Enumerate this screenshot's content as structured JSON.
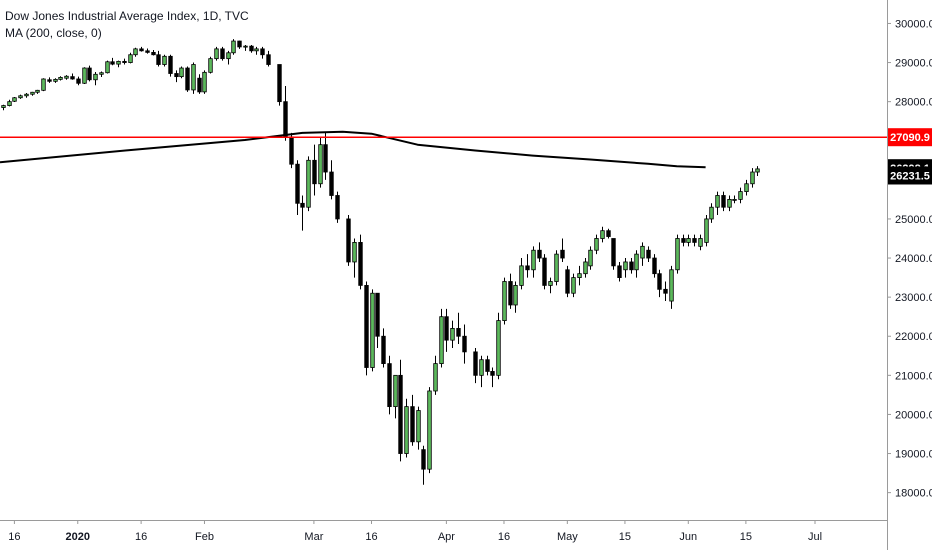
{
  "legend": {
    "title": "Dow Jones Industrial Average Index, 1D, TVC",
    "indicator": "MA (200, close, 0)"
  },
  "colors": {
    "up": "#5cb85c",
    "down": "#000000",
    "ma": "#000000",
    "hline": "#ff0000",
    "axis": "#131722",
    "axis_line": "#9a9a9a"
  },
  "chart_data": {
    "type": "candlestick",
    "y_axis": {
      "ticks": [
        "18000.0",
        "19000.0",
        "20000.0",
        "21000.0",
        "22000.0",
        "23000.0",
        "24000.0",
        "25000.0",
        "26000.0",
        "27000.0",
        "28000.0",
        "29000.0",
        "30000.0"
      ],
      "ylim": [
        17300,
        30600
      ]
    },
    "x_axis": {
      "ticks": [
        {
          "label": "16",
          "x": 0
        },
        {
          "label": "2020",
          "x": 11
        },
        {
          "label": "16",
          "x": 22
        },
        {
          "label": "Feb",
          "x": 33
        },
        {
          "label": "Mar",
          "x": 52
        },
        {
          "label": "16",
          "x": 62
        },
        {
          "label": "Apr",
          "x": 75
        },
        {
          "label": "16",
          "x": 85
        },
        {
          "label": "May",
          "x": 96
        },
        {
          "label": "15",
          "x": 106
        },
        {
          "label": "Jun",
          "x": 117
        },
        {
          "label": "15",
          "x": 127
        },
        {
          "label": "Jul",
          "x": 139
        }
      ],
      "xlim": [
        -2.5,
        151.5
      ]
    },
    "horizontal_line": {
      "value": 27090.9,
      "label": "27090.9"
    },
    "price_labels": [
      {
        "value": 26298.1,
        "label": "26298.1"
      },
      {
        "value": 26231.5,
        "label": "26231.5"
      }
    ],
    "ma200": [
      [
        -2.5,
        26450
      ],
      [
        20,
        26760
      ],
      [
        40,
        27020
      ],
      [
        50,
        27200
      ],
      [
        57,
        27230
      ],
      [
        62,
        27180
      ],
      [
        70,
        26900
      ],
      [
        80,
        26750
      ],
      [
        90,
        26620
      ],
      [
        100,
        26520
      ],
      [
        110,
        26410
      ],
      [
        115,
        26350
      ],
      [
        120,
        26320
      ]
    ],
    "candles": [
      [
        -2,
        27850,
        27920,
        27780,
        27900
      ],
      [
        -1,
        27900,
        28050,
        27880,
        28000
      ],
      [
        0,
        28010,
        28120,
        27990,
        28100
      ],
      [
        1,
        28100,
        28180,
        28070,
        28150
      ],
      [
        2,
        28150,
        28220,
        28100,
        28190
      ],
      [
        3,
        28190,
        28250,
        28150,
        28240
      ],
      [
        4,
        28240,
        28300,
        28200,
        28290
      ],
      [
        5,
        28290,
        28600,
        28270,
        28580
      ],
      [
        6,
        28560,
        28620,
        28480,
        28520
      ],
      [
        7,
        28520,
        28600,
        28480,
        28570
      ],
      [
        8,
        28570,
        28650,
        28540,
        28620
      ],
      [
        9,
        28600,
        28680,
        28560,
        28650
      ],
      [
        10,
        28640,
        28720,
        28560,
        28580
      ],
      [
        11,
        28580,
        28640,
        28420,
        28470
      ],
      [
        12,
        28470,
        28880,
        28450,
        28860
      ],
      [
        13,
        28860,
        28920,
        28520,
        28560
      ],
      [
        14,
        28560,
        28760,
        28420,
        28700
      ],
      [
        15,
        28700,
        28770,
        28630,
        28740
      ],
      [
        16,
        28740,
        29050,
        28720,
        29020
      ],
      [
        17,
        29020,
        29120,
        28930,
        28960
      ],
      [
        18,
        28960,
        29050,
        28880,
        29030
      ],
      [
        19,
        29030,
        29100,
        28950,
        29000
      ],
      [
        20,
        29000,
        29250,
        28980,
        29200
      ],
      [
        21,
        29200,
        29380,
        29150,
        29350
      ],
      [
        22,
        29350,
        29400,
        29280,
        29300
      ],
      [
        23,
        29300,
        29360,
        29230,
        29260
      ],
      [
        24,
        29260,
        29320,
        29180,
        29200
      ],
      [
        25,
        29200,
        29300,
        28900,
        28950
      ],
      [
        26,
        28950,
        29200,
        28900,
        29160
      ],
      [
        27,
        29160,
        29200,
        28640,
        28720
      ],
      [
        28,
        28720,
        28800,
        28500,
        28640
      ],
      [
        29,
        28640,
        28900,
        28600,
        28860
      ],
      [
        30,
        28860,
        28900,
        28250,
        28300
      ],
      [
        31,
        28300,
        29000,
        28200,
        28950
      ],
      [
        32,
        28600,
        28700,
        28200,
        28250
      ],
      [
        33,
        28250,
        28800,
        28200,
        28750
      ],
      [
        34,
        28750,
        29150,
        28720,
        29100
      ],
      [
        35,
        29100,
        29400,
        29050,
        29350
      ],
      [
        36,
        29350,
        29400,
        29050,
        29100
      ],
      [
        37,
        29100,
        29300,
        28950,
        29250
      ],
      [
        38,
        29250,
        29600,
        29200,
        29550
      ],
      [
        39,
        29550,
        29560,
        29350,
        29400
      ],
      [
        40,
        29400,
        29450,
        29300,
        29420
      ],
      [
        41,
        29420,
        29450,
        29250,
        29300
      ],
      [
        42,
        29300,
        29400,
        29200,
        29350
      ],
      [
        43,
        29350,
        29400,
        29100,
        29200
      ],
      [
        44,
        29200,
        29300,
        28900,
        28950
      ],
      [
        46,
        28950,
        28950,
        27900,
        28000
      ],
      [
        47,
        28000,
        28400,
        27000,
        27100
      ],
      [
        48,
        27100,
        27200,
        26300,
        26400
      ],
      [
        49,
        26400,
        26500,
        25100,
        25400
      ],
      [
        50,
        25400,
        25600,
        24700,
        25300
      ],
      [
        51,
        25300,
        26600,
        25200,
        26500
      ],
      [
        52,
        26500,
        26900,
        25600,
        25900
      ],
      [
        53,
        25900,
        27100,
        25800,
        26900
      ],
      [
        54,
        26900,
        27200,
        26000,
        26200
      ],
      [
        55,
        26200,
        26500,
        25500,
        25600
      ],
      [
        56,
        25600,
        25700,
        24900,
        25000
      ],
      [
        58,
        25000,
        25100,
        23800,
        23900
      ],
      [
        59,
        23900,
        24500,
        23500,
        24400
      ],
      [
        60,
        24400,
        24600,
        23200,
        23300
      ],
      [
        61,
        23300,
        23400,
        21000,
        21200
      ],
      [
        62,
        21200,
        23200,
        21100,
        23100
      ],
      [
        63,
        23100,
        23100,
        21700,
        22000
      ],
      [
        64,
        22000,
        22200,
        21200,
        21300
      ],
      [
        65,
        21300,
        21500,
        20000,
        20200
      ],
      [
        66,
        20200,
        21000,
        19900,
        21000
      ],
      [
        67,
        21000,
        21400,
        18800,
        19000
      ],
      [
        68,
        19000,
        20400,
        18900,
        20200
      ],
      [
        69,
        20200,
        20500,
        19200,
        19300
      ],
      [
        70,
        19300,
        20200,
        19100,
        20100
      ],
      [
        71,
        19100,
        19200,
        18200,
        18600
      ],
      [
        72,
        18600,
        20700,
        18500,
        20600
      ],
      [
        73,
        20600,
        21500,
        20500,
        21300
      ],
      [
        74,
        21300,
        22700,
        21200,
        22500
      ],
      [
        75,
        22500,
        22700,
        21600,
        21900
      ],
      [
        76,
        21900,
        22400,
        21700,
        22200
      ],
      [
        77,
        22200,
        22600,
        21800,
        22000
      ],
      [
        78,
        22000,
        22300,
        21300,
        21600
      ],
      [
        80,
        21600,
        21700,
        20800,
        21000
      ],
      [
        81,
        21000,
        21500,
        20700,
        21400
      ],
      [
        82,
        21400,
        21500,
        21000,
        21100
      ],
      [
        83,
        21100,
        21200,
        20700,
        21000
      ],
      [
        84,
        21000,
        22600,
        20900,
        22400
      ],
      [
        85,
        22400,
        23500,
        22300,
        23400
      ],
      [
        86,
        23400,
        23600,
        22700,
        22800
      ],
      [
        87,
        22800,
        23400,
        22600,
        23300
      ],
      [
        88,
        23300,
        24000,
        23200,
        23800
      ],
      [
        89,
        23800,
        24100,
        23500,
        23700
      ],
      [
        90,
        23700,
        24300,
        23500,
        24200
      ],
      [
        91,
        24200,
        24400,
        23900,
        24000
      ],
      [
        92,
        24000,
        24100,
        23200,
        23300
      ],
      [
        93,
        23300,
        23500,
        23100,
        23400
      ],
      [
        94,
        23400,
        24200,
        23300,
        24100
      ],
      [
        95,
        24200,
        24500,
        23900,
        24000
      ],
      [
        96,
        23700,
        23800,
        23000,
        23100
      ],
      [
        97,
        23100,
        23600,
        23000,
        23500
      ],
      [
        98,
        23500,
        23800,
        23300,
        23600
      ],
      [
        99,
        23600,
        24000,
        23500,
        23900
      ],
      [
        100,
        23800,
        24300,
        23700,
        24200
      ],
      [
        101,
        24200,
        24600,
        24100,
        24500
      ],
      [
        102,
        24500,
        24800,
        24400,
        24700
      ],
      [
        103,
        24700,
        24750,
        24500,
        24550
      ],
      [
        104,
        24500,
        24500,
        23700,
        23800
      ],
      [
        105,
        23800,
        23900,
        23400,
        23500
      ],
      [
        106,
        23700,
        24000,
        23500,
        23900
      ],
      [
        107,
        23900,
        24000,
        23600,
        23700
      ],
      [
        108,
        23700,
        24200,
        23500,
        24100
      ],
      [
        109,
        24000,
        24400,
        23800,
        24300
      ],
      [
        110,
        24200,
        24300,
        23900,
        24000
      ],
      [
        111,
        24000,
        24100,
        23500,
        23600
      ],
      [
        112,
        23600,
        23700,
        23000,
        23200
      ],
      [
        113,
        23200,
        23400,
        22900,
        23100
      ],
      [
        114,
        22900,
        23800,
        22700,
        23700
      ],
      [
        115,
        23700,
        24600,
        23600,
        24500
      ],
      [
        116,
        24500,
        24600,
        24300,
        24400
      ],
      [
        117,
        24400,
        24600,
        24300,
        24500
      ],
      [
        118,
        24500,
        24600,
        24300,
        24400
      ],
      [
        119,
        24300,
        24600,
        24200,
        24500
      ],
      [
        120,
        24400,
        25100,
        24300,
        25000
      ],
      [
        121,
        25000,
        25400,
        24900,
        25300
      ],
      [
        122,
        25300,
        25700,
        25100,
        25600
      ],
      [
        123,
        25600,
        25700,
        25200,
        25300
      ],
      [
        124,
        25300,
        25600,
        25200,
        25500
      ],
      [
        125,
        25500,
        25600,
        25400,
        25500
      ],
      [
        126,
        25500,
        25800,
        25400,
        25700
      ],
      [
        127,
        25700,
        26000,
        25600,
        25900
      ],
      [
        128,
        25900,
        26300,
        25800,
        26200
      ],
      [
        129,
        26200,
        26350,
        26100,
        26280
      ]
    ]
  }
}
